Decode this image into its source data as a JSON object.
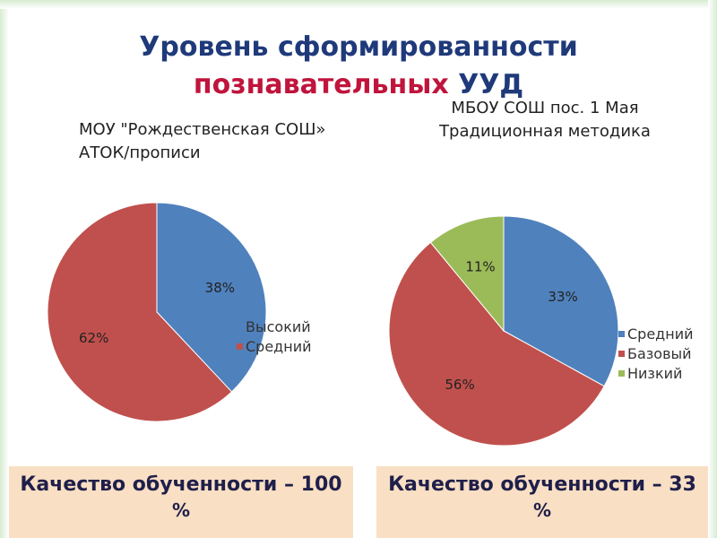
{
  "title": {
    "line1": "Уровень сформированности",
    "line2_red": "познавательных",
    "line2_blue": "УУД"
  },
  "chart_data": [
    {
      "type": "pie",
      "title_lines": [
        "МОУ \"Рождественская СОШ»",
        "АТОК/прописи"
      ],
      "categories": [
        "Высокий",
        "Средний"
      ],
      "values": [
        38,
        62
      ],
      "labels": [
        "38%",
        "62%"
      ],
      "colors": [
        "#4f81bd",
        "#c0504d"
      ],
      "legend": [
        "Высокий",
        "Средний"
      ],
      "legend_placement": "right"
    },
    {
      "type": "pie",
      "title_lines": [
        "МБОУ СОШ пос. 1 Мая",
        "Традиционная методика"
      ],
      "categories": [
        "Средний",
        "Базовый",
        "Низкий"
      ],
      "values": [
        33,
        56,
        11
      ],
      "labels": [
        "33%",
        "56%",
        "11%"
      ],
      "colors": [
        "#4f81bd",
        "#c0504d",
        "#9bbb59"
      ],
      "legend": [
        "Средний",
        "Базовый",
        "Низкий"
      ],
      "legend_placement": "right"
    }
  ],
  "banners": {
    "left": {
      "line1": "Качество обученности – 100",
      "line2": "%"
    },
    "right": {
      "line1": "Качество обученности – 33",
      "line2": "%"
    }
  }
}
